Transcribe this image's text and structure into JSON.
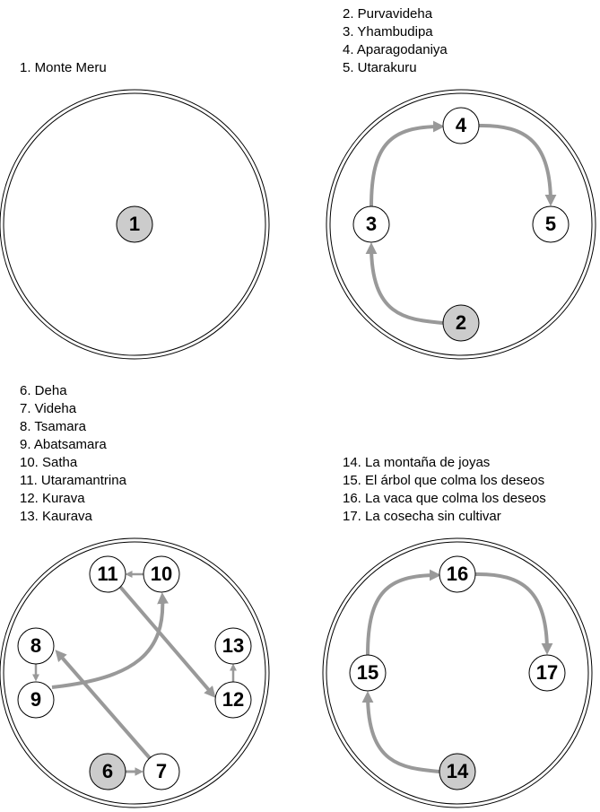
{
  "panels": [
    {
      "id": "p1",
      "legend": [
        "1. Monte Meru"
      ],
      "nodes": [
        {
          "label": "1",
          "shaded": true
        }
      ]
    },
    {
      "id": "p2",
      "legend": [
        "2. Purvavideha",
        "3. Yhambudipa",
        "4. Aparagodaniya",
        "5. Utarakuru"
      ],
      "nodes": [
        {
          "label": "2",
          "shaded": true
        },
        {
          "label": "3",
          "shaded": false
        },
        {
          "label": "4",
          "shaded": false
        },
        {
          "label": "5",
          "shaded": false
        }
      ]
    },
    {
      "id": "p3",
      "legend": [
        "6. Deha",
        "7. Videha",
        "8. Tsamara",
        "9. Abatsamara",
        "10. Satha",
        "11. Utaramantrina",
        "12. Kurava",
        "13. Kaurava"
      ],
      "nodes": [
        {
          "label": "6",
          "shaded": true
        },
        {
          "label": "7",
          "shaded": false
        },
        {
          "label": "8",
          "shaded": false
        },
        {
          "label": "9",
          "shaded": false
        },
        {
          "label": "10",
          "shaded": false
        },
        {
          "label": "11",
          "shaded": false
        },
        {
          "label": "12",
          "shaded": false
        },
        {
          "label": "13",
          "shaded": false
        }
      ]
    },
    {
      "id": "p4",
      "legend": [
        "14. La montaña de joyas",
        "15. El árbol que colma los deseos",
        "16. La vaca que colma los deseos",
        "17. La cosecha sin cultivar"
      ],
      "nodes": [
        {
          "label": "14",
          "shaded": true
        },
        {
          "label": "15",
          "shaded": false
        },
        {
          "label": "16",
          "shaded": false
        },
        {
          "label": "17",
          "shaded": false
        }
      ]
    }
  ],
  "colors": {
    "node_fill": "#ffffff",
    "node_shaded_fill": "#cccccc",
    "stroke": "#000000",
    "arrow": "#999999"
  }
}
